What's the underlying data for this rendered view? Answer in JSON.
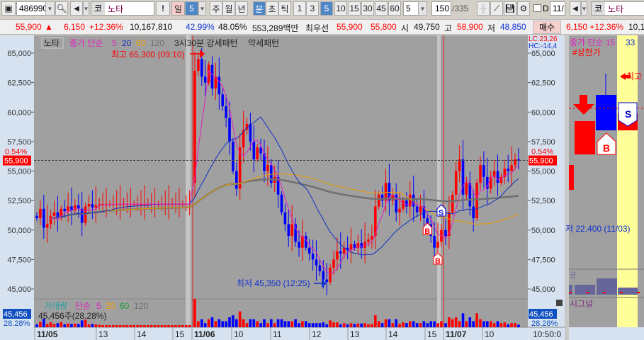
{
  "toolbar": {
    "code": "486990",
    "name_prefix": "코",
    "name": "노타",
    "alert": "!",
    "period_day": "일",
    "period_value": "5",
    "week": "주",
    "month": "월",
    "year": "년",
    "minute": "분",
    "second": "초",
    "tick": "틱",
    "minute_options": [
      "1",
      "3",
      "5",
      "10",
      "15",
      "30",
      "45",
      "60"
    ],
    "selected_minute": "5",
    "count_select": "5",
    "view_count": "150",
    "total_count": "/335",
    "d_label": "D",
    "date_field": "11/"
  },
  "info": {
    "price": "55,900",
    "arrow": "▲",
    "change": "6,150",
    "change_pct": "+12.36%",
    "volume": "10,167,810",
    "pct1": "42.99%",
    "pct2": "48.05%",
    "amount": "553,289백만",
    "best_label": "최우선",
    "ask": "55,900",
    "bid": "55,800",
    "open_label": "시",
    "open": "49,750",
    "high_label": "고",
    "high": "58,900",
    "low_label": "저",
    "low": "48,850",
    "buy_button": "매수"
  },
  "right_panel": {
    "name_prefix": "코",
    "name": "노타",
    "change": "6,150 +12.36%",
    "volume": "10,1",
    "lc": "LC:23,26",
    "hc": "HC:-14,4",
    "ma_legend": "종가 단순 15",
    "ma2": "33",
    "limit_label": "#상한가",
    "high_label": "최고",
    "low_text": "저 22,400 (11/03)",
    "indicator": "금",
    "signal": "시그널"
  },
  "chart": {
    "name_tag": "노타",
    "ma_legend": {
      "label": "종가 단순",
      "p5": "5",
      "p20": "20",
      "p60": "60",
      "p120": "120"
    },
    "pattern_label": "3시30분 강세패턴",
    "weak_label": "약세패턴",
    "high_note": "최고 65,300 (09:10)",
    "low_note": "최저 45,350 (12:25)",
    "current_price": "55,900",
    "current_pct": "0.54%",
    "volume_legend": {
      "label": "거래량",
      "type": "단순",
      "p5": "5",
      "p20": "20",
      "p60": "60",
      "p120": "120"
    },
    "volume_value": "45,456주(28.28%)",
    "volume_box": "45,456",
    "volume_pct": "28.28%",
    "time_labels": [
      {
        "t": "11/05",
        "bold": true
      },
      {
        "t": "13"
      },
      {
        "t": "14"
      },
      {
        "t": "15"
      },
      {
        "t": "11/06",
        "bold": true
      },
      {
        "t": "10"
      },
      {
        "t": "11"
      },
      {
        "t": "12"
      },
      {
        "t": "13"
      },
      {
        "t": "14"
      },
      {
        "t": "15"
      },
      {
        "t": "11/07",
        "bold": true
      },
      {
        "t": "10"
      }
    ],
    "clock": "10:50:0"
  },
  "colors": {
    "up": "#ff0000",
    "down": "#0000ff",
    "ma5": "#e020c0",
    "ma20": "#1030c0",
    "ma60": "#f0a000",
    "ma120": "#707070",
    "bg": "#a0a0a0",
    "axis": "#d6e2f0"
  },
  "chart_data": {
    "type": "candlestick",
    "ylim": [
      44000,
      66000
    ],
    "yticks": [
      65000,
      62500,
      60000,
      57500,
      55000,
      52500,
      50000,
      47500,
      45000
    ],
    "ytick_labels": [
      "65,000",
      "62,500",
      "60,000",
      "57,500",
      "55,000",
      "52,500",
      "50,000",
      "47,500",
      "45,000"
    ],
    "days": [
      "11/05",
      "11/06",
      "11/07"
    ],
    "closes": [
      [
        51000,
        51800,
        50200,
        50500,
        51200,
        51500,
        51000,
        51800,
        51600,
        52000,
        51700,
        52100,
        51800,
        50600,
        52000,
        52200,
        51900,
        52100,
        52200,
        52200,
        52200,
        52200,
        52200,
        52200,
        52200,
        52200,
        52200,
        52200,
        52200,
        52200,
        52200,
        52200,
        52200,
        52200,
        52200,
        52200,
        52200,
        52200,
        52200,
        52200,
        52200,
        52200,
        52200,
        52200,
        52200
      ],
      [
        63500,
        64500,
        63000,
        62500,
        64000,
        62000,
        63000,
        61500,
        60500,
        59500,
        57500,
        55000,
        53500,
        57000,
        58500,
        59000,
        57500,
        56000,
        57000,
        56500,
        55000,
        55500,
        54000,
        54500,
        53000,
        51500,
        50500,
        49500,
        50500,
        49000,
        48500,
        49500,
        48500,
        48000,
        47500,
        47000,
        46500,
        45800,
        45600,
        46800,
        47500,
        48200,
        48000,
        48500,
        48300,
        48800,
        48500,
        48900,
        48500,
        49000,
        49200,
        49500,
        52000,
        53000,
        52500,
        54000,
        52500,
        53000,
        51500,
        51800,
        52500,
        52000,
        53000,
        52000,
        51500,
        52000,
        51000,
        50500,
        49500,
        48500,
        49000,
        50000
      ],
      [
        49500,
        51500,
        53000,
        55000,
        56000,
        53000,
        54000,
        52000,
        51000,
        54000,
        55500,
        54500,
        53500,
        54500,
        55000,
        54000,
        54500,
        55200,
        55000,
        55500,
        56000,
        55900
      ]
    ],
    "day_high": {
      "value": 65300,
      "time": "09:10"
    },
    "day_low": {
      "value": 45350,
      "time": "12:25"
    },
    "current": 55900,
    "signals": [
      {
        "type": "B",
        "day": 1,
        "index": 67
      },
      {
        "type": "B",
        "day": 1,
        "index": 70
      },
      {
        "type": "S",
        "day": 1,
        "index": 71
      }
    ]
  }
}
